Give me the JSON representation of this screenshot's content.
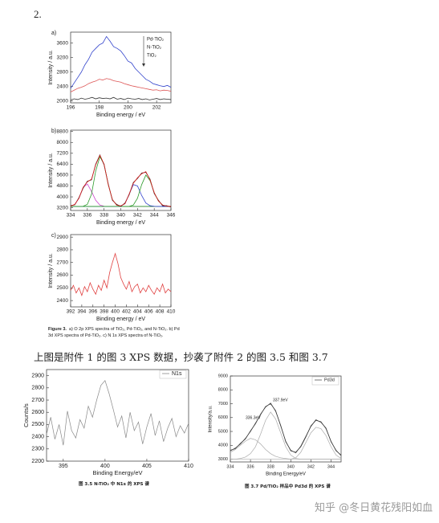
{
  "heading": "2.",
  "caption": {
    "label": "Figure 3.",
    "text": "a) O 2p XPS spectra of TiO₂, Pd-TiO₂, and N-TiO₂. b) Pd 3d XPS spectra of Pd-TiO₂. c) N 1s XPS spectra of N-TiO₂."
  },
  "body_text": "上图是附件 1 的图 3 XPS 数据，抄袭了附件 2 的图 3.5 和图 3.7",
  "watermark": "知乎 @冬日黄花残阳如血",
  "chart_data": [
    {
      "type": "line",
      "panel_label": "a)",
      "xlabel": "Binding energy / eV",
      "ylabel": "Intensity / a.u.",
      "legend": "top-right",
      "xlim": [
        196,
        203
      ],
      "xticks": [
        196,
        198,
        200,
        202
      ],
      "ylim": [
        1950,
        3900
      ],
      "yticks": [
        2000,
        2400,
        2800,
        3200,
        3600
      ],
      "x": [
        196,
        196.25,
        196.5,
        196.75,
        197,
        197.25,
        197.5,
        197.75,
        198,
        198.25,
        198.5,
        198.75,
        199,
        199.25,
        199.5,
        199.75,
        200,
        200.25,
        200.5,
        200.75,
        201,
        201.25,
        201.5,
        201.75,
        202,
        202.25,
        202.5,
        202.75,
        203
      ],
      "series": [
        {
          "name": "Pd-TiO₂",
          "color": "#3344cc",
          "values": [
            2350,
            2500,
            2650,
            2800,
            3000,
            3150,
            3350,
            3450,
            3550,
            3600,
            3780,
            3650,
            3500,
            3450,
            3380,
            3250,
            3100,
            3050,
            2900,
            2800,
            2700,
            2600,
            2550,
            2480,
            2450,
            2420,
            2400,
            2430,
            2380
          ]
        },
        {
          "name": "N-TiO₂",
          "color": "#dd5555",
          "values": [
            2250,
            2300,
            2350,
            2380,
            2420,
            2480,
            2520,
            2550,
            2600,
            2580,
            2620,
            2600,
            2560,
            2540,
            2520,
            2480,
            2450,
            2420,
            2400,
            2380,
            2360,
            2340,
            2320,
            2300,
            2310,
            2280,
            2300,
            2290,
            2270
          ]
        },
        {
          "name": "TiO₂",
          "color": "#333333",
          "values": [
            2030,
            2060,
            2040,
            2080,
            2050,
            2070,
            2100,
            2060,
            2090,
            2070,
            2080,
            2060,
            2100,
            2050,
            2070,
            2040,
            2080,
            2060,
            2050,
            2070,
            2040,
            2060,
            2030,
            2050,
            2070,
            2040,
            2060,
            2050,
            2040
          ]
        }
      ]
    },
    {
      "type": "line",
      "panel_label": "b)",
      "xlabel": "Binding energy / eV",
      "ylabel": "Intensity / a.u.",
      "xlim": [
        334,
        346
      ],
      "xticks": [
        334,
        336,
        338,
        340,
        342,
        344,
        346
      ],
      "ylim": [
        3000,
        8900
      ],
      "yticks": [
        3200,
        4000,
        4800,
        5600,
        6400,
        7200,
        8000,
        8800
      ],
      "x": [
        334,
        334.5,
        335,
        335.5,
        336,
        336.5,
        337,
        337.5,
        338,
        338.5,
        339,
        339.5,
        340,
        340.5,
        341,
        341.5,
        342,
        342.5,
        343,
        343.5,
        344,
        344.5,
        345,
        345.5,
        346
      ],
      "series": [
        {
          "color": "#cc44cc",
          "values": [
            3320,
            3450,
            3900,
            4700,
            4950,
            4400,
            3750,
            3400,
            3310,
            3300,
            3300,
            3300,
            3300,
            3300,
            3300,
            3300,
            3300,
            3300,
            3300,
            3300,
            3300,
            3300,
            3300,
            3300,
            3300
          ]
        },
        {
          "color": "#2a9a2a",
          "values": [
            3300,
            3300,
            3300,
            3310,
            3450,
            4200,
            5900,
            6950,
            6400,
            4900,
            3800,
            3400,
            3310,
            3300,
            3300,
            3300,
            3300,
            3300,
            3300,
            3300,
            3300,
            3300,
            3300,
            3300,
            3300
          ]
        },
        {
          "color": "#3344cc",
          "values": [
            3300,
            3300,
            3300,
            3300,
            3300,
            3300,
            3300,
            3300,
            3300,
            3300,
            3300,
            3300,
            3330,
            3500,
            4200,
            4900,
            4800,
            4100,
            3550,
            3350,
            3310,
            3300,
            3300,
            3300,
            3300
          ]
        },
        {
          "color": "#2a9a2a",
          "values": [
            3300,
            3300,
            3300,
            3300,
            3300,
            3300,
            3300,
            3300,
            3300,
            3300,
            3300,
            3300,
            3300,
            3300,
            3300,
            3400,
            3900,
            4900,
            5600,
            5200,
            4300,
            3700,
            3400,
            3320,
            3300
          ]
        },
        {
          "color": "#222222",
          "values": [
            3350,
            3420,
            3950,
            4650,
            5150,
            5250,
            6400,
            7080,
            6350,
            4950,
            3750,
            3450,
            3300,
            3550,
            4150,
            5050,
            5350,
            5750,
            5800,
            5300,
            4250,
            3750,
            3350,
            3350,
            3250
          ]
        },
        {
          "color": "#e02020",
          "values": [
            3320,
            3450,
            3900,
            4710,
            5100,
            5300,
            6350,
            7050,
            6410,
            4900,
            3800,
            3400,
            3340,
            3500,
            4200,
            5000,
            5400,
            5700,
            5850,
            5250,
            4310,
            3700,
            3400,
            3320,
            3300
          ]
        }
      ]
    },
    {
      "type": "line",
      "panel_label": "c)",
      "xlabel": "Binding energy / eV",
      "ylabel": "Intensity / a.u.",
      "xlim": [
        392,
        410
      ],
      "xticks": [
        392,
        394,
        396,
        398,
        400,
        402,
        404,
        406,
        408,
        410
      ],
      "ylim": [
        2350,
        2920
      ],
      "yticks": [
        2400,
        2500,
        2600,
        2700,
        2800,
        2900
      ],
      "x": [
        392,
        392.5,
        393,
        393.5,
        394,
        394.5,
        395,
        395.5,
        396,
        396.5,
        397,
        397.5,
        398,
        398.5,
        399,
        399.5,
        400,
        400.5,
        401,
        401.5,
        402,
        402.5,
        403,
        403.5,
        404,
        404.5,
        405,
        405.5,
        406,
        406.5,
        407,
        407.5,
        408,
        408.5,
        409,
        409.5,
        410
      ],
      "series": [
        {
          "color": "#e04040",
          "values": [
            2480,
            2520,
            2460,
            2500,
            2440,
            2510,
            2470,
            2540,
            2490,
            2450,
            2520,
            2480,
            2560,
            2500,
            2620,
            2700,
            2770,
            2690,
            2580,
            2530,
            2490,
            2550,
            2470,
            2510,
            2530,
            2460,
            2500,
            2470,
            2520,
            2480,
            2450,
            2500,
            2470,
            2530,
            2460,
            2490,
            2470
          ]
        }
      ]
    },
    {
      "type": "line",
      "xlabel": "Binding Energy/eV",
      "ylabel": "Counts/s",
      "legend": "top-right",
      "caption": "图 3.5 N-TiO₂ 中 N1s 的 XPS 谱",
      "xlim": [
        393,
        410
      ],
      "xticks": [
        395,
        400,
        405,
        410
      ],
      "ylim": [
        2200,
        2950
      ],
      "yticks": [
        2200,
        2300,
        2400,
        2500,
        2600,
        2700,
        2800,
        2900
      ],
      "x": [
        393,
        393.5,
        394,
        394.5,
        395,
        395.5,
        396,
        396.5,
        397,
        397.5,
        398,
        398.5,
        399,
        399.5,
        400,
        400.5,
        401,
        401.5,
        402,
        402.5,
        403,
        403.5,
        404,
        404.5,
        405,
        405.5,
        406,
        406.5,
        407,
        407.5,
        408,
        408.5,
        409,
        409.5,
        410
      ],
      "series": [
        {
          "name": "N1s",
          "color": "#888888",
          "values": [
            2420,
            2560,
            2380,
            2500,
            2330,
            2610,
            2450,
            2390,
            2540,
            2470,
            2650,
            2560,
            2700,
            2820,
            2860,
            2750,
            2620,
            2480,
            2570,
            2390,
            2600,
            2450,
            2520,
            2340,
            2480,
            2590,
            2410,
            2530,
            2360,
            2470,
            2550,
            2400,
            2490,
            2430,
            2510
          ]
        }
      ]
    },
    {
      "type": "line",
      "xlabel": "Binding Energy/eV",
      "ylabel": "Intensity/a.u.",
      "legend": "top-right",
      "caption": "图 3.7 Pd/TiO₂ 样品中 Pd3d 的 XPS 谱",
      "annotations": [
        "337.9eV",
        "336.3eV"
      ],
      "xlim": [
        334,
        345
      ],
      "xticks": [
        334,
        336,
        338,
        340,
        342,
        344
      ],
      "ylim": [
        2800,
        9000
      ],
      "yticks": [
        3000,
        4000,
        5000,
        6000,
        7000,
        8000,
        9000
      ],
      "x": [
        334,
        334.5,
        335,
        335.5,
        336,
        336.5,
        337,
        337.5,
        338,
        338.5,
        339,
        339.5,
        340,
        340.5,
        341,
        341.5,
        342,
        342.5,
        343,
        343.5,
        344,
        344.5,
        345
      ],
      "series": [
        {
          "color": "#aaaaaa",
          "values": [
            3500,
            3700,
            4000,
            4300,
            4500,
            4400,
            4100,
            3700,
            3400,
            3200,
            3100,
            3050,
            3000,
            3000,
            3000,
            3000,
            3000,
            3000,
            3000,
            3000,
            3000,
            3000,
            3000
          ]
        },
        {
          "color": "#aaaaaa",
          "values": [
            3000,
            3000,
            3050,
            3150,
            3400,
            3900,
            4800,
            5800,
            6400,
            5900,
            4900,
            3900,
            3300,
            3050,
            3000,
            3000,
            3000,
            3000,
            3000,
            3000,
            3000,
            3000,
            3000
          ]
        },
        {
          "color": "#aaaaaa",
          "values": [
            3000,
            3000,
            3000,
            3000,
            3000,
            3000,
            3000,
            3000,
            3000,
            3000,
            3000,
            3000,
            3000,
            3100,
            3500,
            4200,
            4900,
            5300,
            5200,
            4700,
            3900,
            3300,
            3050
          ]
        },
        {
          "name": "Pd3d",
          "color": "#555555",
          "values": [
            3650,
            3750,
            4150,
            4450,
            5050,
            5550,
            6250,
            6750,
            7050,
            6450,
            5450,
            4250,
            3650,
            3450,
            3950,
            4650,
            5350,
            5850,
            5650,
            5250,
            4250,
            3650,
            3250
          ]
        },
        {
          "color": "#333333",
          "values": [
            3600,
            3800,
            4100,
            4500,
            5000,
            5600,
            6200,
            6800,
            7000,
            6500,
            5400,
            4300,
            3600,
            3500,
            3900,
            4600,
            5400,
            5800,
            5700,
            5200,
            4300,
            3600,
            3300
          ]
        }
      ]
    }
  ]
}
